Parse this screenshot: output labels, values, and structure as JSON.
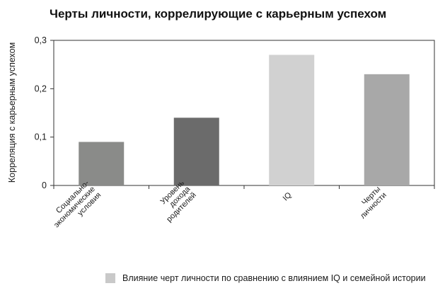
{
  "chart_data": {
    "type": "bar",
    "title": "Черты личности, коррелирующие с карьерным успехом",
    "xlabel": "",
    "ylabel": "Корреляция с карьерным успехом",
    "ylim": [
      0,
      0.3
    ],
    "yticks": [
      {
        "value": 0,
        "label": "0"
      },
      {
        "value": 0.1,
        "label": "0,1"
      },
      {
        "value": 0.2,
        "label": "0,2"
      },
      {
        "value": 0.3,
        "label": "0,3"
      }
    ],
    "categories": [
      [
        "Социально-",
        "экономические",
        "условия"
      ],
      [
        "Уровень",
        "дохода",
        "родителей"
      ],
      [
        "IQ"
      ],
      [
        "Черты",
        "личности"
      ]
    ],
    "values": [
      0.09,
      0.14,
      0.27,
      0.23
    ],
    "bar_colors": [
      "#8a8b89",
      "#6b6b6b",
      "#d1d1d1",
      "#a8a8a8"
    ],
    "grid": false,
    "legend_position": "bottom",
    "legend": [
      {
        "label": "Влияние черт личности по сравнению с влиянием IQ и семейной истории",
        "color": "#c9c9c9"
      }
    ]
  }
}
